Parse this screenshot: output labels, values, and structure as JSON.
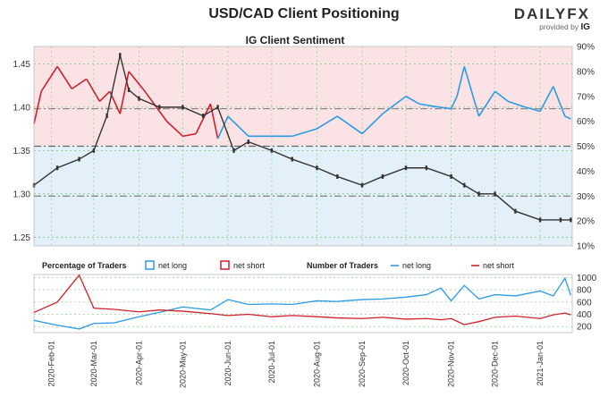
{
  "title": "USD/CAD Client Positioning",
  "brand": {
    "name": "DAILYFX",
    "sub": "provided by",
    "sub_brand": "IG"
  },
  "chart_data": [
    {
      "type": "line",
      "subtitle": "IG Client Sentiment",
      "price_axis": {
        "ticks": [
          1.25,
          1.3,
          1.35,
          1.4,
          1.45
        ],
        "labels": [
          "1.25",
          "1.30",
          "1.35",
          "1.40",
          "1.45"
        ],
        "ylim": [
          1.24,
          1.47
        ]
      },
      "percent_axis": {
        "ticks": [
          10,
          20,
          30,
          40,
          50,
          60,
          70,
          80,
          90
        ],
        "labels": [
          "10%",
          "20%",
          "30%",
          "40%",
          "50%",
          "60%",
          "70%",
          "80%",
          "90%"
        ],
        "ylim": [
          10,
          90
        ]
      },
      "reference_lines_pct": [
        30,
        50,
        65
      ],
      "colors": {
        "net_long": "#2b9be6",
        "net_short": "#d0202a",
        "price": "#333333",
        "long_zone": "#e3f0f9",
        "short_zone": "#fbe3e5"
      },
      "price_series": {
        "x": [
          "2020-01-20",
          "2020-02-05",
          "2020-02-20",
          "2020-03-01",
          "2020-03-10",
          "2020-03-19",
          "2020-03-25",
          "2020-04-01",
          "2020-04-15",
          "2020-05-01",
          "2020-05-15",
          "2020-05-25",
          "2020-06-05",
          "2020-06-15",
          "2020-07-01",
          "2020-07-15",
          "2020-08-01",
          "2020-08-15",
          "2020-09-01",
          "2020-09-15",
          "2020-10-01",
          "2020-10-15",
          "2020-11-01",
          "2020-11-10",
          "2020-11-20",
          "2020-12-01",
          "2020-12-15",
          "2021-01-01",
          "2021-01-15",
          "2021-01-22"
        ],
        "values": [
          1.31,
          1.33,
          1.34,
          1.35,
          1.39,
          1.46,
          1.42,
          1.41,
          1.4,
          1.4,
          1.39,
          1.4,
          1.35,
          1.36,
          1.35,
          1.34,
          1.33,
          1.32,
          1.31,
          1.32,
          1.33,
          1.33,
          1.32,
          1.31,
          1.3,
          1.3,
          1.28,
          1.27,
          1.27,
          1.27
        ]
      },
      "net_long_pct": {
        "x": [
          "2020-01-20",
          "2020-01-25",
          "2020-02-05",
          "2020-02-15",
          "2020-02-25",
          "2020-03-05",
          "2020-03-12",
          "2020-03-19",
          "2020-03-25",
          "2020-04-05",
          "2020-04-20",
          "2020-05-01",
          "2020-05-10",
          "2020-05-20",
          "2020-05-25",
          "2020-06-01",
          "2020-06-15",
          "2020-07-01",
          "2020-07-15",
          "2020-08-01",
          "2020-08-15",
          "2020-09-01",
          "2020-09-15",
          "2020-10-01",
          "2020-10-10",
          "2020-10-20",
          "2020-11-01",
          "2020-11-05",
          "2020-11-10",
          "2020-11-20",
          "2020-12-01",
          "2020-12-10",
          "2020-12-20",
          "2021-01-01",
          "2021-01-10",
          "2021-01-18",
          "2021-01-22"
        ],
        "values": [
          41,
          28,
          18,
          27,
          23,
          32,
          28,
          37,
          20,
          28,
          40,
          46,
          45,
          33,
          47,
          62,
          54,
          46,
          54,
          57,
          62,
          55,
          63,
          70,
          67,
          66,
          65,
          70,
          82,
          62,
          72,
          68,
          66,
          64,
          74,
          62,
          61
        ]
      },
      "net_short_pct": {
        "x": [
          "2020-01-20",
          "2020-01-25",
          "2020-02-05",
          "2020-02-15",
          "2020-02-25",
          "2020-03-05",
          "2020-03-12",
          "2020-03-19",
          "2020-03-25",
          "2020-04-05",
          "2020-04-20",
          "2020-05-01",
          "2020-05-10",
          "2020-05-20",
          "2020-05-25",
          "2020-06-01",
          "2020-06-15",
          "2020-07-01",
          "2020-07-15",
          "2020-08-01",
          "2020-08-15",
          "2020-09-01",
          "2020-09-15",
          "2020-10-01",
          "2020-10-10",
          "2020-10-20",
          "2020-11-01",
          "2020-11-05",
          "2020-11-10",
          "2020-11-20",
          "2020-12-01",
          "2020-12-10",
          "2020-12-20",
          "2021-01-01",
          "2021-01-10",
          "2021-01-18",
          "2021-01-22"
        ],
        "values": [
          59,
          72,
          82,
          73,
          77,
          68,
          72,
          63,
          80,
          72,
          60,
          54,
          55,
          67,
          53,
          38,
          46,
          54,
          46,
          43,
          38,
          45,
          37,
          30,
          33,
          34,
          35,
          30,
          18,
          38,
          28,
          32,
          34,
          36,
          26,
          38,
          39
        ]
      }
    },
    {
      "type": "line",
      "legend": {
        "pct_title": "Percentage of Traders",
        "pct_long": "net long",
        "pct_short": "net short",
        "num_title": "Number of Traders",
        "num_long": "net long",
        "num_short": "net short"
      },
      "count_axis": {
        "ticks": [
          200,
          400,
          600,
          800,
          1000
        ],
        "labels": [
          "200",
          "400",
          "600",
          "800",
          "1000"
        ],
        "ylim": [
          100,
          1050
        ]
      },
      "x_labels": [
        "2020-Feb-01",
        "2020-Mar-01",
        "2020-Apr-01",
        "2020-May-01",
        "2020-Jun-01",
        "2020-Jul-01",
        "2020-Aug-01",
        "2020-Sep-01",
        "2020-Oct-01",
        "2020-Nov-01",
        "2020-Dec-01",
        "2021-Jan-01"
      ],
      "net_long_count": {
        "x": [
          "2020-01-20",
          "2020-02-05",
          "2020-02-20",
          "2020-03-01",
          "2020-03-15",
          "2020-04-01",
          "2020-04-15",
          "2020-05-01",
          "2020-05-20",
          "2020-06-01",
          "2020-06-15",
          "2020-07-01",
          "2020-07-15",
          "2020-08-01",
          "2020-08-15",
          "2020-09-01",
          "2020-09-15",
          "2020-10-01",
          "2020-10-15",
          "2020-10-25",
          "2020-11-01",
          "2020-11-10",
          "2020-11-20",
          "2020-12-01",
          "2020-12-15",
          "2021-01-01",
          "2021-01-10",
          "2021-01-18",
          "2021-01-22"
        ],
        "values": [
          300,
          220,
          160,
          250,
          260,
          360,
          430,
          520,
          470,
          640,
          560,
          570,
          560,
          620,
          610,
          640,
          650,
          680,
          720,
          830,
          620,
          870,
          650,
          720,
          700,
          780,
          700,
          990,
          710
        ]
      },
      "net_short_count": {
        "x": [
          "2020-01-20",
          "2020-02-05",
          "2020-02-20",
          "2020-03-01",
          "2020-03-15",
          "2020-04-01",
          "2020-04-15",
          "2020-05-01",
          "2020-05-20",
          "2020-06-01",
          "2020-06-15",
          "2020-07-01",
          "2020-07-15",
          "2020-08-01",
          "2020-08-15",
          "2020-09-01",
          "2020-09-15",
          "2020-10-01",
          "2020-10-15",
          "2020-10-25",
          "2020-11-01",
          "2020-11-10",
          "2020-11-20",
          "2020-12-01",
          "2020-12-15",
          "2021-01-01",
          "2021-01-10",
          "2021-01-18",
          "2021-01-22"
        ],
        "values": [
          430,
          600,
          1040,
          500,
          480,
          440,
          470,
          450,
          410,
          380,
          400,
          360,
          380,
          360,
          340,
          330,
          350,
          320,
          330,
          310,
          330,
          230,
          280,
          350,
          370,
          330,
          390,
          420,
          390
        ]
      }
    }
  ]
}
